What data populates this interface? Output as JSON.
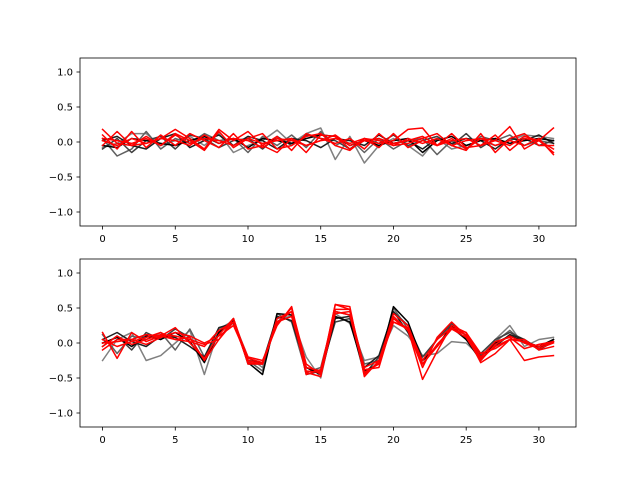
{
  "chart_data": [
    {
      "type": "line",
      "title": "",
      "xlabel": "",
      "ylabel": "",
      "xlim": [
        -1.55,
        32.55
      ],
      "ylim": [
        -1.2,
        1.2
      ],
      "x_ticks": [
        0,
        5,
        10,
        15,
        20,
        25,
        30
      ],
      "y_ticks": [
        -1.0,
        -0.5,
        0.0,
        0.5,
        1.0
      ],
      "x_tick_labels": [
        "0",
        "5",
        "10",
        "15",
        "20",
        "25",
        "30"
      ],
      "y_tick_labels": [
        "−1.0",
        "−0.5",
        "0.0",
        "0.5",
        "1.0"
      ],
      "grid": false,
      "x": [
        0,
        1,
        2,
        3,
        4,
        5,
        6,
        7,
        8,
        9,
        10,
        11,
        12,
        13,
        14,
        15,
        16,
        17,
        18,
        19,
        20,
        21,
        22,
        23,
        24,
        25,
        26,
        27,
        28,
        29,
        30,
        31
      ],
      "series": [
        {
          "color": "#808080",
          "values": [
            -0.08,
            -0.02,
            0.12,
            0.12,
            -0.05,
            0.02,
            0.08,
            -0.05,
            0.12,
            -0.15,
            -0.05,
            0.02,
            0.17,
            -0.02,
            0.12,
            0.2,
            -0.25,
            0.08,
            -0.3,
            -0.05,
            0.05,
            -0.05,
            -0.2,
            0.05,
            -0.1,
            -0.05,
            0.02,
            -0.05,
            0.02,
            0.1,
            0.08,
            0.05
          ]
        },
        {
          "color": "#606060",
          "values": [
            0.05,
            -0.2,
            -0.1,
            0.15,
            -0.1,
            0.05,
            -0.02,
            0.12,
            0.02,
            0.05,
            -0.15,
            0.08,
            -0.05,
            0.1,
            -0.08,
            0.15,
            -0.05,
            0.05,
            -0.15,
            0.05,
            -0.1,
            0.02,
            0.05,
            -0.18,
            0.02,
            -0.1,
            0.08,
            0.02,
            0.1,
            -0.05,
            0.02,
            -0.02
          ]
        },
        {
          "color": "#404040",
          "values": [
            -0.1,
            0.05,
            -0.15,
            0.02,
            0.08,
            -0.1,
            0.1,
            0.05,
            -0.08,
            0.02,
            0.05,
            -0.1,
            0.08,
            -0.05,
            0.1,
            0.05,
            0.02,
            -0.1,
            0.05,
            -0.02,
            0.1,
            -0.05,
            0.02,
            0.08,
            -0.05,
            0.12,
            -0.08,
            0.05,
            -0.02,
            0.05,
            -0.05,
            0.02
          ]
        },
        {
          "color": "#202020",
          "values": [
            0.02,
            0.08,
            -0.05,
            -0.1,
            0.05,
            0.12,
            -0.08,
            0.02,
            0.1,
            -0.05,
            0.08,
            0.02,
            -0.1,
            0.05,
            0.02,
            -0.08,
            0.05,
            0.02,
            -0.05,
            0.1,
            -0.02,
            0.02,
            -0.1,
            0.05,
            -0.02,
            0.05,
            0.02,
            -0.1,
            0.05,
            0.02,
            0.1,
            -0.02
          ]
        },
        {
          "color": "#000000",
          "values": [
            -0.05,
            -0.08,
            0.05,
            0.02,
            -0.02,
            -0.05,
            0.02,
            0.08,
            -0.02,
            0.05,
            -0.08,
            0.05,
            0.02,
            -0.02,
            0.05,
            0.1,
            0.08,
            -0.05,
            0.02,
            -0.05,
            0.02,
            0.05,
            -0.15,
            0.02,
            0.08,
            -0.05,
            0.02,
            0.05,
            -0.02,
            0.02,
            0.05,
            0.02
          ]
        },
        {
          "color": "#ff0000",
          "values": [
            0.18,
            -0.02,
            -0.05,
            -0.02,
            0.05,
            0.18,
            0.05,
            -0.1,
            0.18,
            0.02,
            0.15,
            -0.05,
            -0.15,
            0.05,
            -0.15,
            0.1,
            0.08,
            -0.1,
            0.02,
            -0.02,
            0.02,
            0.18,
            0.2,
            -0.05,
            0.05,
            -0.1,
            0.05,
            0.02,
            0.22,
            -0.1,
            0.02,
            0.2
          ]
        },
        {
          "color": "#ff0000",
          "values": [
            0.1,
            -0.1,
            0.15,
            -0.08,
            0.1,
            -0.05,
            0.12,
            0.02,
            -0.08,
            0.12,
            -0.1,
            -0.05,
            0.08,
            -0.12,
            0.12,
            0.05,
            -0.02,
            0.05,
            -0.1,
            0.12,
            -0.05,
            -0.02,
            0.05,
            0.12,
            -0.05,
            -0.12,
            0.12,
            -0.15,
            0.05,
            0.12,
            -0.05,
            -0.05
          ]
        },
        {
          "color": "#ff0000",
          "values": [
            -0.05,
            0.15,
            -0.05,
            0.08,
            -0.05,
            0.12,
            0.02,
            -0.12,
            0.15,
            -0.08,
            0.05,
            0.12,
            -0.1,
            -0.05,
            0.08,
            0.12,
            -0.05,
            -0.12,
            0.05,
            -0.08,
            0.12,
            -0.08,
            0.02,
            -0.05,
            0.12,
            -0.08,
            -0.05,
            0.1,
            -0.12,
            0.05,
            0.02,
            -0.15
          ]
        },
        {
          "color": "#ff0000",
          "values": [
            0.02,
            -0.05,
            0.05,
            -0.02,
            0.05,
            0.02,
            -0.05,
            0.1,
            -0.02,
            0.05,
            0.02,
            -0.08,
            0.05,
            0.02,
            -0.05,
            0.02,
            0.05,
            -0.02,
            0.05,
            0.02,
            -0.05,
            0.05,
            -0.02,
            0.05,
            -0.05,
            0.02,
            0.05,
            -0.05,
            0.02,
            -0.05,
            0.05,
            -0.18
          ]
        },
        {
          "color": "#ff0000",
          "values": [
            0.05,
            0.02,
            -0.02,
            0.05,
            -0.05,
            0.1,
            -0.02,
            0.05,
            0.02,
            -0.05,
            0.05,
            -0.02,
            0.02,
            0.05,
            -0.05,
            0.02,
            0.1,
            -0.05,
            0.02,
            0.05,
            -0.02,
            0.02,
            0.08,
            -0.05,
            0.02,
            0.05,
            -0.05,
            0.02,
            -0.05,
            0.08,
            0.02,
            -0.1
          ]
        }
      ]
    },
    {
      "type": "line",
      "title": "",
      "xlabel": "",
      "ylabel": "",
      "xlim": [
        -1.55,
        32.55
      ],
      "ylim": [
        -1.2,
        1.2
      ],
      "x_ticks": [
        0,
        5,
        10,
        15,
        20,
        25,
        30
      ],
      "y_ticks": [
        -1.0,
        -0.5,
        0.0,
        0.5,
        1.0
      ],
      "x_tick_labels": [
        "0",
        "5",
        "10",
        "15",
        "20",
        "25",
        "30"
      ],
      "y_tick_labels": [
        "−1.0",
        "−0.5",
        "0.0",
        "0.5",
        "1.0"
      ],
      "grid": false,
      "x": [
        0,
        1,
        2,
        3,
        4,
        5,
        6,
        7,
        8,
        9,
        10,
        11,
        12,
        13,
        14,
        15,
        16,
        17,
        18,
        19,
        20,
        21,
        22,
        23,
        24,
        25,
        26,
        27,
        28,
        29,
        30,
        31
      ],
      "series": [
        {
          "color": "#808080",
          "values": [
            -0.25,
            0.05,
            0.15,
            -0.25,
            -0.18,
            0.0,
            0.18,
            -0.45,
            0.2,
            0.32,
            -0.2,
            -0.35,
            0.35,
            0.38,
            -0.2,
            -0.5,
            0.42,
            0.28,
            -0.25,
            -0.2,
            0.25,
            0.1,
            -0.18,
            -0.15,
            0.02,
            0.0,
            -0.2,
            0.05,
            0.25,
            -0.05,
            0.05,
            0.08
          ]
        },
        {
          "color": "#606060",
          "values": [
            0.12,
            -0.15,
            0.1,
            0.05,
            0.15,
            -0.1,
            0.2,
            -0.2,
            0.15,
            0.3,
            -0.25,
            -0.4,
            0.42,
            0.3,
            -0.42,
            -0.35,
            0.45,
            0.4,
            -0.3,
            -0.25,
            0.5,
            0.2,
            -0.25,
            0.05,
            0.25,
            0.05,
            -0.2,
            0.02,
            0.18,
            0.0,
            -0.05,
            0.05
          ]
        },
        {
          "color": "#404040",
          "values": [
            -0.05,
            0.1,
            -0.1,
            0.15,
            0.05,
            0.2,
            0.08,
            -0.25,
            0.12,
            0.35,
            -0.3,
            -0.3,
            0.3,
            0.45,
            -0.45,
            -0.4,
            0.3,
            0.35,
            -0.45,
            -0.2,
            0.45,
            0.25,
            -0.2,
            0.05,
            0.28,
            0.1,
            -0.15,
            0.05,
            0.15,
            0.05,
            -0.1,
            0.02
          ]
        },
        {
          "color": "#202020",
          "values": [
            0.05,
            0.15,
            0.02,
            -0.05,
            0.1,
            0.08,
            -0.05,
            -0.2,
            0.22,
            0.28,
            -0.25,
            -0.28,
            0.38,
            0.32,
            -0.35,
            -0.45,
            0.35,
            0.38,
            -0.35,
            -0.18,
            0.45,
            0.15,
            -0.25,
            -0.05,
            0.22,
            0.05,
            -0.18,
            -0.05,
            0.12,
            0.05,
            -0.08,
            0.05
          ]
        },
        {
          "color": "#000000",
          "values": [
            0.0,
            0.08,
            -0.05,
            0.1,
            0.05,
            0.15,
            0.02,
            -0.28,
            0.15,
            0.32,
            -0.28,
            -0.45,
            0.42,
            0.4,
            -0.35,
            -0.45,
            0.38,
            0.3,
            -0.4,
            -0.3,
            0.52,
            0.3,
            -0.25,
            -0.05,
            0.25,
            0.05,
            -0.25,
            0.0,
            0.1,
            0.02,
            -0.05,
            0.05
          ]
        },
        {
          "color": "#ff0000",
          "values": [
            0.15,
            -0.22,
            0.15,
            0.02,
            0.1,
            0.22,
            0.0,
            -0.22,
            0.12,
            0.35,
            -0.3,
            -0.3,
            0.28,
            0.5,
            -0.3,
            -0.45,
            0.55,
            0.52,
            -0.48,
            -0.25,
            0.3,
            0.2,
            -0.52,
            -0.12,
            0.25,
            0.15,
            -0.15,
            -0.08,
            0.05,
            -0.25,
            -0.2,
            -0.18
          ]
        },
        {
          "color": "#ff0000",
          "values": [
            -0.1,
            0.05,
            0.05,
            0.12,
            0.1,
            0.05,
            0.08,
            -0.25,
            0.05,
            0.35,
            -0.25,
            -0.3,
            0.35,
            0.45,
            -0.45,
            -0.38,
            0.48,
            0.48,
            -0.38,
            -0.35,
            0.35,
            0.18,
            -0.35,
            0.08,
            0.3,
            0.1,
            -0.22,
            -0.05,
            0.05,
            0.02,
            -0.05,
            0.02
          ]
        },
        {
          "color": "#ff0000",
          "values": [
            0.05,
            -0.05,
            0.02,
            0.08,
            0.15,
            0.05,
            0.02,
            -0.05,
            0.18,
            0.3,
            -0.2,
            -0.25,
            0.25,
            0.52,
            -0.4,
            -0.42,
            0.55,
            0.48,
            -0.45,
            -0.28,
            0.42,
            0.25,
            -0.3,
            -0.02,
            0.2,
            0.12,
            -0.28,
            -0.15,
            0.05,
            0.05,
            -0.1,
            -0.05
          ]
        },
        {
          "color": "#ff0000",
          "values": [
            -0.05,
            0.1,
            -0.02,
            0.05,
            0.12,
            0.1,
            0.05,
            -0.02,
            0.05,
            0.3,
            -0.28,
            -0.3,
            0.3,
            0.38,
            -0.35,
            -0.4,
            0.45,
            0.4,
            -0.42,
            -0.3,
            0.3,
            0.22,
            -0.25,
            0.05,
            0.22,
            0.15,
            -0.2,
            0.02,
            0.08,
            -0.08,
            -0.02,
            0.02
          ]
        },
        {
          "color": "#ff0000",
          "values": [
            0.0,
            0.02,
            0.05,
            -0.02,
            0.08,
            0.15,
            0.1,
            0.0,
            0.1,
            0.25,
            -0.22,
            -0.28,
            0.3,
            0.45,
            -0.42,
            -0.48,
            0.42,
            0.45,
            -0.35,
            -0.25,
            0.38,
            0.18,
            -0.3,
            -0.05,
            0.2,
            0.08,
            -0.25,
            -0.02,
            0.1,
            0.0,
            -0.08,
            0.0
          ]
        }
      ]
    }
  ]
}
